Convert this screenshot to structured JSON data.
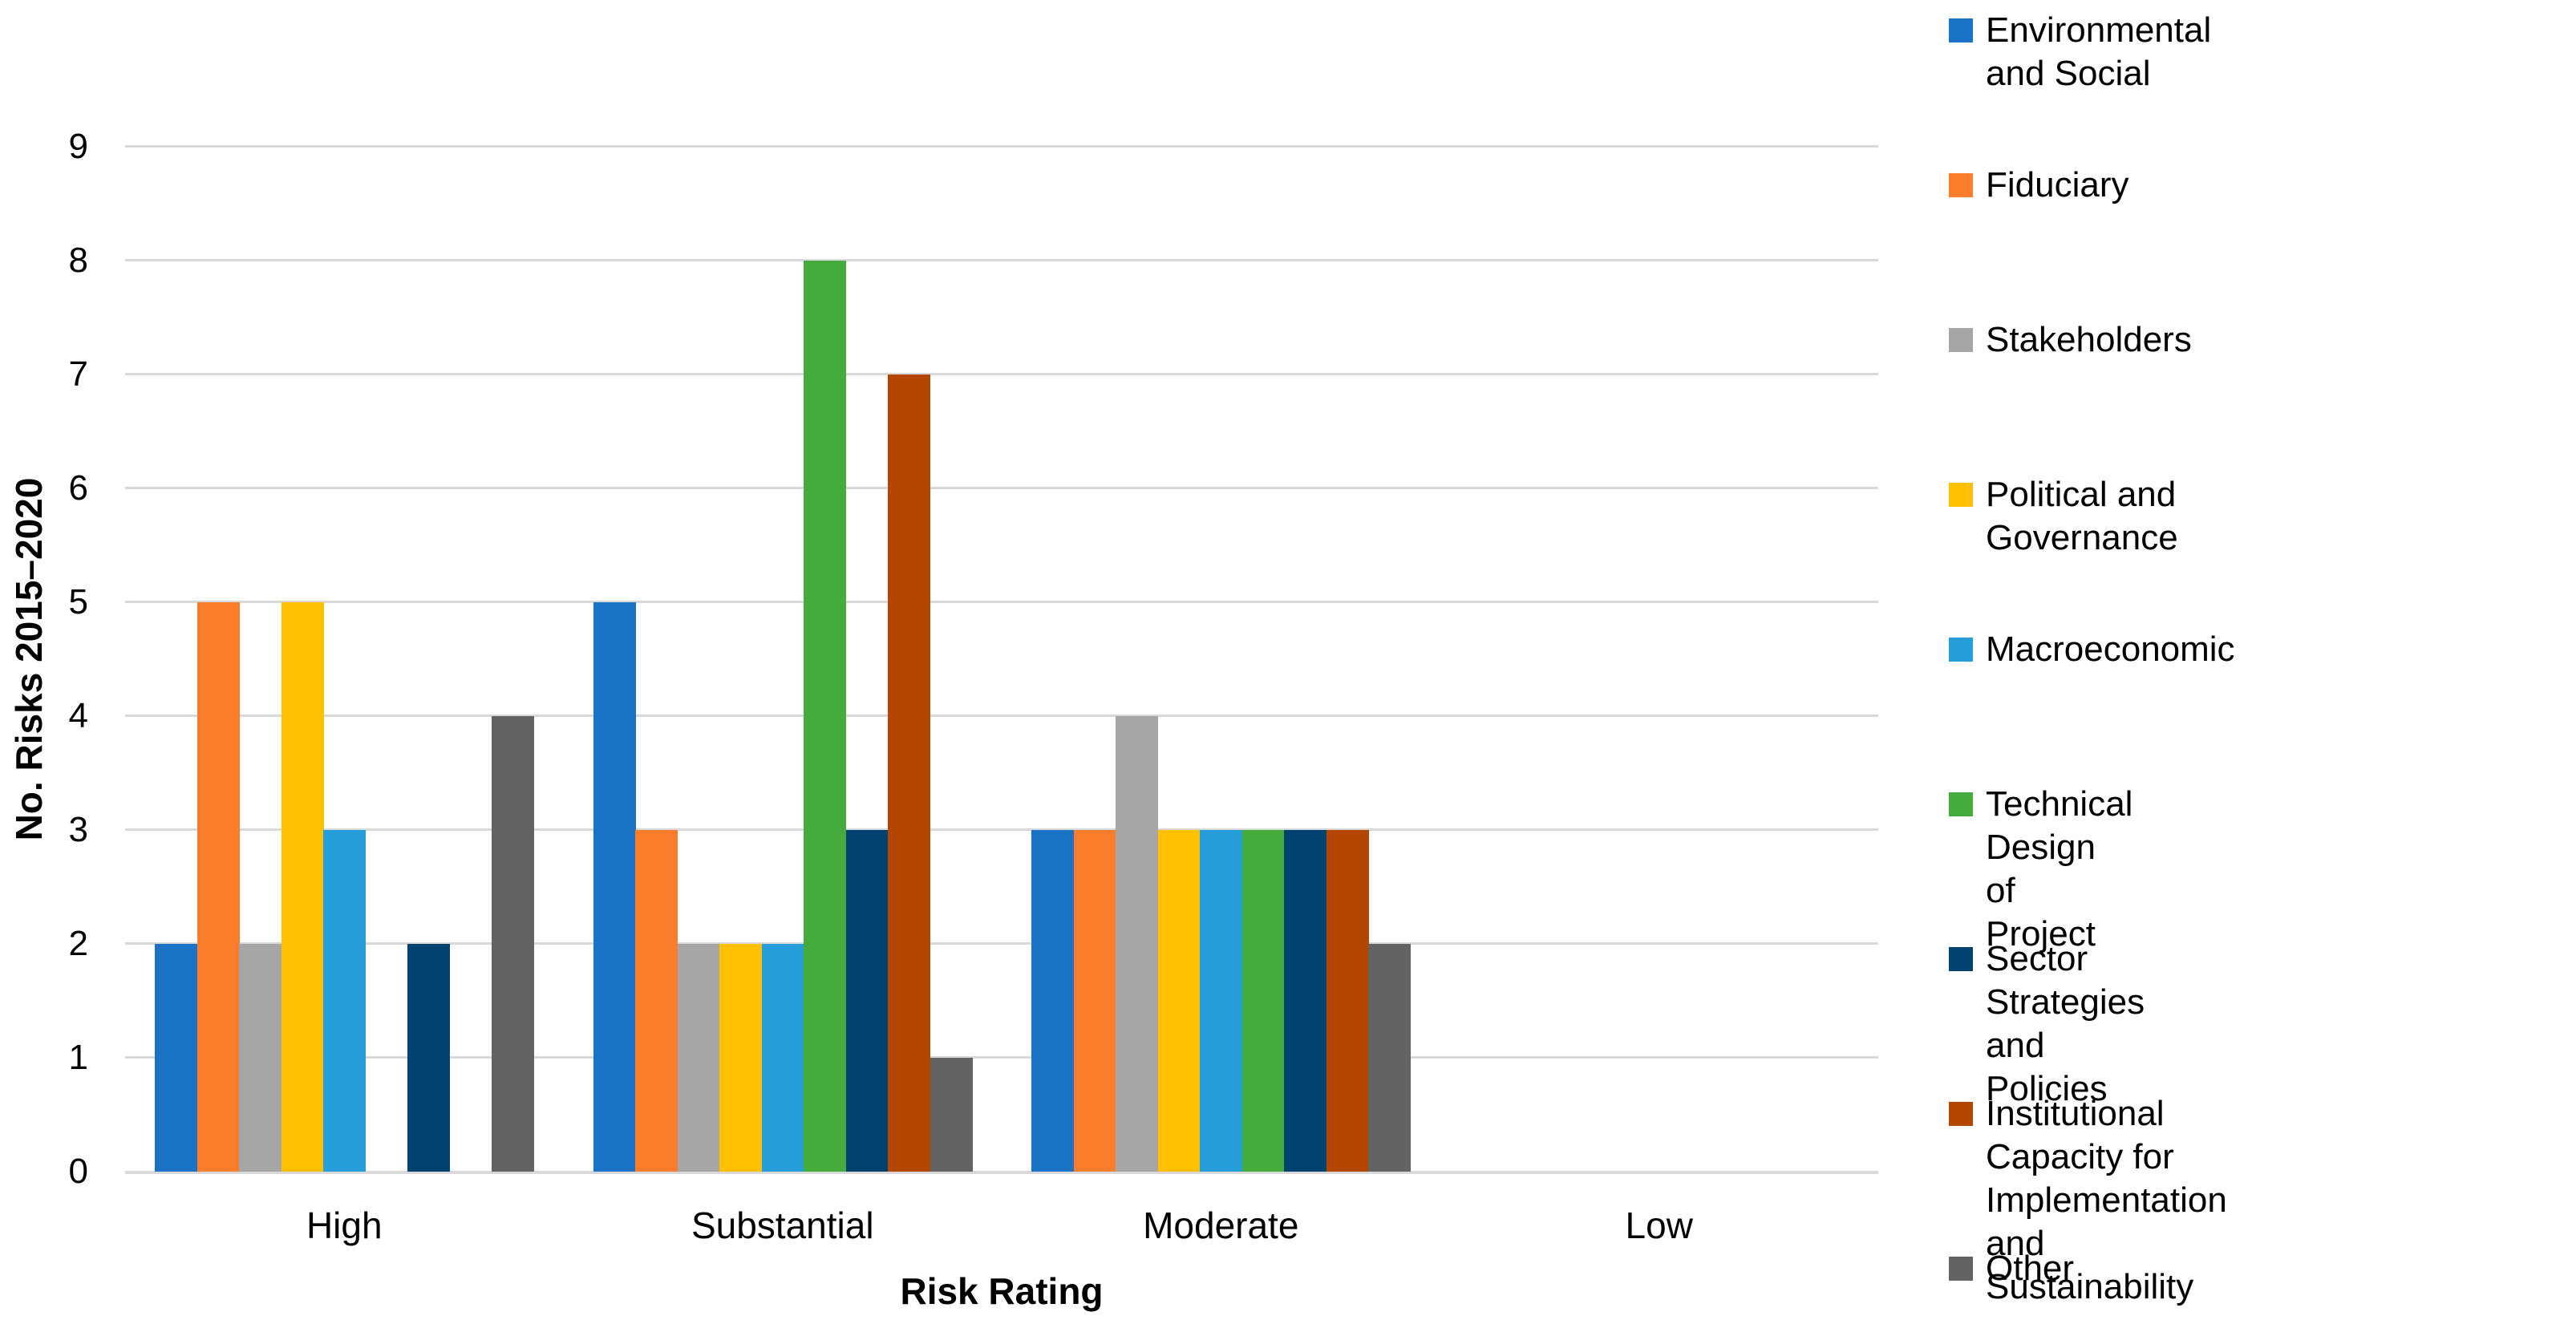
{
  "chart_data": {
    "type": "bar",
    "title": "",
    "categories": [
      "High",
      "Substantial",
      "Moderate",
      "Low"
    ],
    "series": [
      {
        "name": "Environmental and Social",
        "color": "#1A73C4",
        "values": [
          2,
          5,
          3,
          0
        ]
      },
      {
        "name": "Fiduciary",
        "color": "#FB7D2C",
        "values": [
          5,
          3,
          3,
          0
        ]
      },
      {
        "name": "Stakeholders",
        "color": "#A6A6A6",
        "values": [
          2,
          2,
          4,
          0
        ]
      },
      {
        "name": "Political and Governance",
        "color": "#FEC000",
        "values": [
          5,
          2,
          3,
          0
        ]
      },
      {
        "name": "Macroeconomic",
        "color": "#259ED9",
        "values": [
          3,
          2,
          3,
          0
        ]
      },
      {
        "name": "Technical Design of Project",
        "color": "#45AB3C",
        "values": [
          0,
          8,
          3,
          0
        ]
      },
      {
        "name": "Sector Strategies and Policies",
        "color": "#004370",
        "values": [
          2,
          3,
          3,
          0
        ]
      },
      {
        "name": "Institutional Capacity for Implementation and Sustainability",
        "color": "#B34700",
        "values": [
          0,
          7,
          3,
          0
        ]
      },
      {
        "name": "Other",
        "color": "#636363",
        "values": [
          4,
          1,
          2,
          0
        ]
      }
    ],
    "xlabel": "Risk Rating",
    "ylabel": "No. Risks 2015–2020",
    "ylim": [
      0,
      9
    ],
    "y_ticks": [
      0,
      1,
      2,
      3,
      4,
      5,
      6,
      7,
      8,
      9
    ],
    "grid": true,
    "legend_position": "right",
    "gridline_color": "#D9D9D9"
  }
}
